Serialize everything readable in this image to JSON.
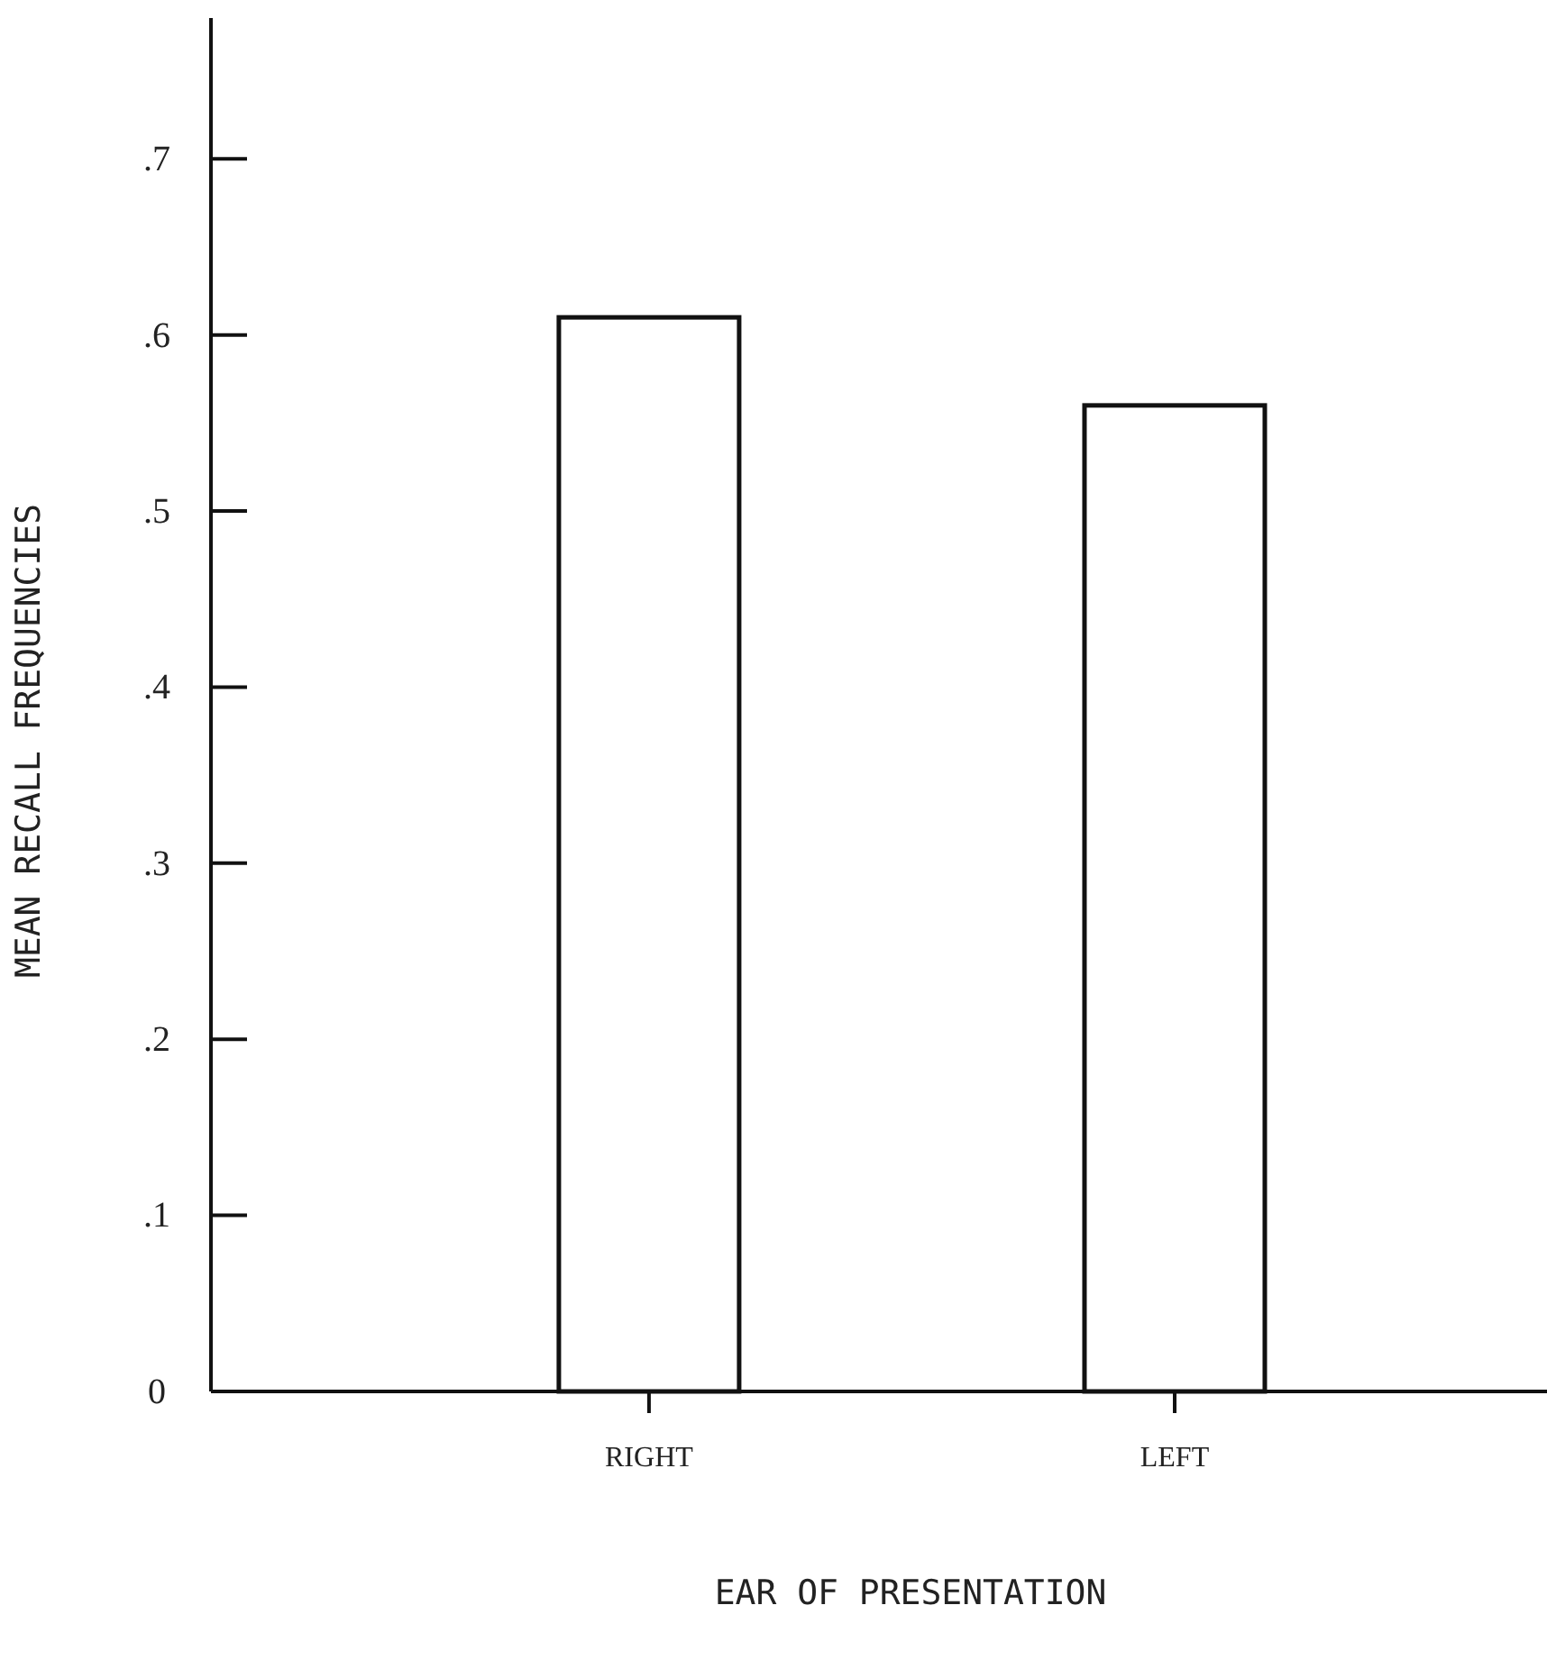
{
  "chart_data": {
    "type": "bar",
    "xlabel": "EAR OF PRESENTATION",
    "ylabel": "MEAN RECALL FREQUENCIES",
    "categories": [
      "RIGHT",
      "LEFT"
    ],
    "values": [
      0.61,
      0.56
    ],
    "color": "#ffffff",
    "ylim": [
      0,
      0.78
    ],
    "yticks": [
      0,
      {
        "value": 0.1,
        "label": ".1"
      },
      {
        "value": 0.2,
        "label": ".2"
      },
      {
        "value": 0.3,
        "label": ".3"
      },
      {
        "value": 0.4,
        "label": ".4"
      },
      {
        "value": 0.5,
        "label": ".5"
      },
      {
        "value": 0.6,
        "label": ".6"
      },
      {
        "value": 0.7,
        "label": ".7"
      }
    ],
    "grid": false
  }
}
